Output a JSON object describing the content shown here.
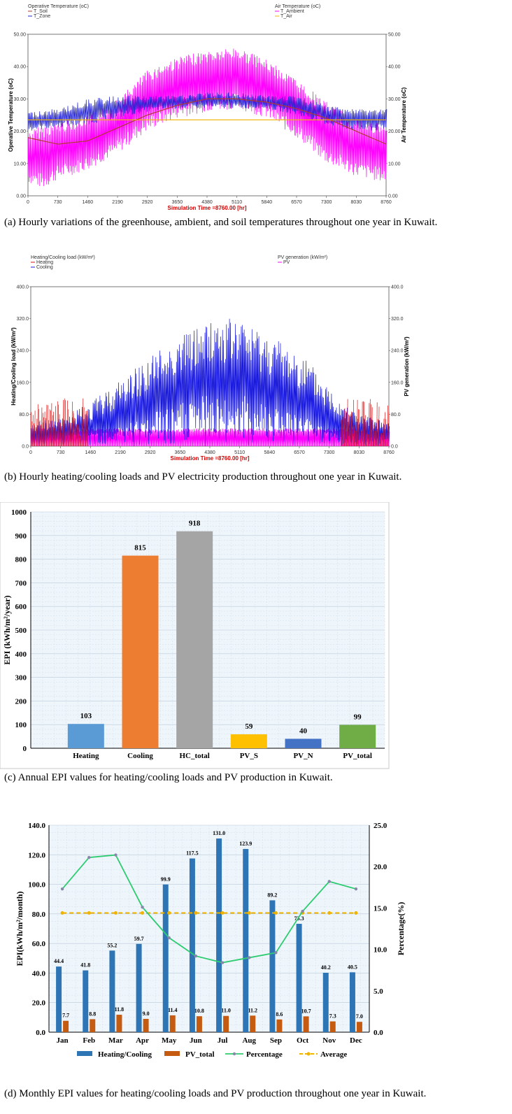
{
  "panels": {
    "a": {
      "caption": "(a) Hourly variations of the greenhouse, ambient, and soil temperatures throughout one year in Kuwait.",
      "left_legend_title": "Operative Temperature (oC)",
      "right_legend_title": "Air Temperature (oC)",
      "y_left_label": "Operative Temperature (oC)",
      "y_right_label": "Air Temperature (oC)",
      "x_label": "Simulation Time =8760.00 [hr]"
    },
    "b": {
      "caption": "(b) Hourly heating/cooling loads and PV electricity production throughout one year in Kuwait.",
      "left_legend_title": "Heating/Cooling load (kW/m²)",
      "right_legend_title": "PV generation (kW/m²)",
      "y_left_label": "Heating/Cooling load (kW/m²)",
      "y_right_label": "PV generation (kW/m²)",
      "x_label": "Simulation Time =8760.00 [hr]"
    },
    "c": {
      "caption": "(c) Annual EPI values for heating/cooling loads and PV production in Kuwait."
    },
    "d": {
      "caption": "(d) Monthly EPI values for heating/cooling loads and PV production throughout one year in Kuwait."
    }
  },
  "colors": {
    "soil": "#b03a2e",
    "zone": "#2222cc",
    "ambient": "#ff00ff",
    "air": "#f0b400",
    "heating": "#dd1111",
    "cooling": "#1a1adf",
    "pv": "#ff00ff",
    "bar_heating": "#5b9bd5",
    "bar_cooling": "#ed7d31",
    "bar_hc_total": "#a5a5a5",
    "bar_pv_s": "#ffc000",
    "bar_pv_n": "#4472c4",
    "bar_pv_total": "#70ad47",
    "m_hc": "#2e75b6",
    "m_pv": "#c55a11",
    "m_pct": "#2ecc71",
    "m_avg": "#f0b400"
  },
  "chart_data": [
    {
      "type": "line",
      "title": "",
      "x": {
        "min": 0,
        "max": 8760,
        "ticks": [
          0,
          730,
          1460,
          2190,
          2920,
          3650,
          4380,
          5110,
          5840,
          6570,
          7300,
          8030,
          8760
        ]
      },
      "y_left": {
        "min": 0,
        "max": 50,
        "ticks": [
          "0.00",
          "10.00",
          "20.00",
          "30.00",
          "40.00",
          "50.00"
        ]
      },
      "y_right": {
        "min": 0,
        "max": 50,
        "ticks": [
          "0.00",
          "10.00",
          "20.00",
          "30.00",
          "40.00",
          "50.00"
        ]
      },
      "series": [
        {
          "name": "T_Soil",
          "axis": "left",
          "key": "soil"
        },
        {
          "name": "T_Zone",
          "axis": "left",
          "key": "zone"
        },
        {
          "name": "T_Ambient",
          "axis": "right",
          "key": "ambient"
        },
        {
          "name": "T_Air",
          "axis": "right",
          "key": "air"
        }
      ],
      "envelope": {
        "ambient_upper": [
          [
            0,
            20
          ],
          [
            365,
            22
          ],
          [
            730,
            23
          ],
          [
            1460,
            25
          ],
          [
            2190,
            30
          ],
          [
            2920,
            39
          ],
          [
            3650,
            43
          ],
          [
            4380,
            45
          ],
          [
            5110,
            46
          ],
          [
            5840,
            42
          ],
          [
            6570,
            36
          ],
          [
            7300,
            29
          ],
          [
            8030,
            24
          ],
          [
            8760,
            22
          ]
        ],
        "ambient_lower": [
          [
            0,
            4
          ],
          [
            365,
            2
          ],
          [
            730,
            5
          ],
          [
            1460,
            8
          ],
          [
            2190,
            13
          ],
          [
            2920,
            20
          ],
          [
            3650,
            24
          ],
          [
            4380,
            26
          ],
          [
            5110,
            27
          ],
          [
            5840,
            24
          ],
          [
            6570,
            18
          ],
          [
            7300,
            10
          ],
          [
            8030,
            6
          ],
          [
            8760,
            4
          ]
        ],
        "zone_upper": [
          [
            0,
            26
          ],
          [
            730,
            27
          ],
          [
            1460,
            30
          ],
          [
            2190,
            31
          ],
          [
            2920,
            31
          ],
          [
            3650,
            31
          ],
          [
            4380,
            32
          ],
          [
            5110,
            32
          ],
          [
            5840,
            31
          ],
          [
            6570,
            31
          ],
          [
            7300,
            28
          ],
          [
            8030,
            27
          ],
          [
            8760,
            27
          ]
        ],
        "zone_lower": [
          [
            0,
            20
          ],
          [
            730,
            21
          ],
          [
            1460,
            22
          ],
          [
            2190,
            24
          ],
          [
            2920,
            26
          ],
          [
            3650,
            27
          ],
          [
            4380,
            27
          ],
          [
            5110,
            27
          ],
          [
            5840,
            27
          ],
          [
            6570,
            25
          ],
          [
            7300,
            22
          ],
          [
            8030,
            20
          ],
          [
            8760,
            20
          ]
        ],
        "soil": [
          [
            0,
            18
          ],
          [
            730,
            16
          ],
          [
            1460,
            17
          ],
          [
            2190,
            21
          ],
          [
            2920,
            25
          ],
          [
            3650,
            28
          ],
          [
            4380,
            30
          ],
          [
            5110,
            30
          ],
          [
            5840,
            29
          ],
          [
            6570,
            27
          ],
          [
            7300,
            24
          ],
          [
            8030,
            20
          ],
          [
            8760,
            16
          ]
        ],
        "air_constant": 23.5
      }
    },
    {
      "type": "line",
      "title": "",
      "x": {
        "min": 0,
        "max": 8760,
        "ticks": [
          0,
          730,
          1460,
          2190,
          2920,
          3650,
          4380,
          5110,
          5840,
          6570,
          7300,
          8030,
          8760
        ]
      },
      "y_left": {
        "min": 0,
        "max": 400,
        "ticks": [
          "0.0",
          "80.0",
          "160.0",
          "240.0",
          "320.0",
          "400.0"
        ]
      },
      "y_right": {
        "min": 0,
        "max": 400,
        "ticks": [
          "0.0",
          "80.0",
          "160.0",
          "240.0",
          "320.0",
          "400.0"
        ]
      },
      "series": [
        {
          "name": "Heating",
          "axis": "left",
          "key": "heating"
        },
        {
          "name": "Cooling",
          "axis": "left",
          "key": "cooling"
        },
        {
          "name": "PV",
          "axis": "right",
          "key": "pv"
        }
      ],
      "envelope": {
        "cooling_peak": [
          [
            0,
            60
          ],
          [
            730,
            70
          ],
          [
            1460,
            110
          ],
          [
            2190,
            170
          ],
          [
            2920,
            230
          ],
          [
            3650,
            280
          ],
          [
            4380,
            320
          ],
          [
            5110,
            320
          ],
          [
            5840,
            280
          ],
          [
            6570,
            240
          ],
          [
            7300,
            150
          ],
          [
            8030,
            80
          ],
          [
            8760,
            60
          ]
        ],
        "cooling_mid": [
          [
            0,
            20
          ],
          [
            730,
            25
          ],
          [
            1460,
            35
          ],
          [
            2190,
            50
          ],
          [
            2920,
            80
          ],
          [
            3650,
            110
          ],
          [
            4380,
            130
          ],
          [
            5110,
            130
          ],
          [
            5840,
            110
          ],
          [
            6570,
            80
          ],
          [
            7300,
            40
          ],
          [
            8030,
            25
          ],
          [
            8760,
            20
          ]
        ],
        "heating_active": [
          [
            0,
            1400
          ],
          [
            7600,
            8760
          ]
        ],
        "heating_peak": 120,
        "pv_peak": 45
      }
    },
    {
      "type": "bar",
      "title": "",
      "ylabel": "EPI (kWh/m²/year)",
      "categories": [
        "Heating",
        "Cooling",
        "HC_total",
        "PV_S",
        "PV_N",
        "PV_total"
      ],
      "values": [
        103,
        815,
        918,
        59,
        40,
        99
      ],
      "ylim": [
        0,
        1000
      ],
      "yticks": [
        0,
        100,
        200,
        300,
        400,
        500,
        600,
        700,
        800,
        900,
        1000
      ],
      "color_keys": [
        "bar_heating",
        "bar_cooling",
        "bar_hc_total",
        "bar_pv_s",
        "bar_pv_n",
        "bar_pv_total"
      ]
    },
    {
      "type": "bar",
      "title": "",
      "ylabel": "EPI(kWh/m²/month)",
      "y2label": "Percentage(%)",
      "categories": [
        "Jan",
        "Feb",
        "Mar",
        "Apr",
        "May",
        "Jun",
        "Jul",
        "Aug",
        "Sep",
        "Oct",
        "Nov",
        "Dec"
      ],
      "ylim": [
        0,
        140
      ],
      "yticks": [
        "0.0",
        "20.0",
        "40.0",
        "60.0",
        "80.0",
        "100.0",
        "120.0",
        "140.0"
      ],
      "y2lim": [
        0,
        25
      ],
      "y2ticks": [
        "0.0",
        "5.0",
        "10.0",
        "15.0",
        "20.0",
        "25.0"
      ],
      "series": [
        {
          "name": "Heating/Cooling",
          "kind": "bar",
          "color_key": "m_hc",
          "values": [
            44.4,
            41.8,
            55.2,
            59.7,
            99.9,
            117.5,
            131.0,
            123.9,
            89.2,
            73.3,
            40.2,
            40.5
          ],
          "labels": [
            "44.4",
            "41.8",
            "55.2",
            "59.7",
            "99.9",
            "117.5",
            "131.0",
            "123.9",
            "89.2",
            "73.3",
            "40.2",
            "40.5"
          ]
        },
        {
          "name": "PV_total",
          "kind": "bar",
          "color_key": "m_pv",
          "values": [
            7.7,
            8.8,
            11.8,
            9.0,
            11.4,
            10.8,
            11.0,
            11.2,
            8.6,
            10.7,
            7.3,
            7.0
          ],
          "labels": [
            "7.7",
            "8.8",
            "11.8",
            "9.0",
            "11.4",
            "10.8",
            "11.0",
            "11.2",
            "8.6",
            "10.7",
            "7.3",
            "7.0"
          ]
        },
        {
          "name": "Percentage",
          "kind": "line",
          "axis": "right",
          "color_key": "m_pct",
          "values": [
            17.3,
            21.1,
            21.4,
            15.1,
            11.4,
            9.2,
            8.4,
            9.0,
            9.6,
            14.6,
            18.2,
            17.3
          ]
        },
        {
          "name": "Average",
          "kind": "dashed",
          "axis": "right",
          "color_key": "m_avg",
          "values": [
            14.4,
            14.4,
            14.4,
            14.4,
            14.4,
            14.4,
            14.4,
            14.4,
            14.4,
            14.4,
            14.4,
            14.4
          ]
        }
      ]
    }
  ]
}
